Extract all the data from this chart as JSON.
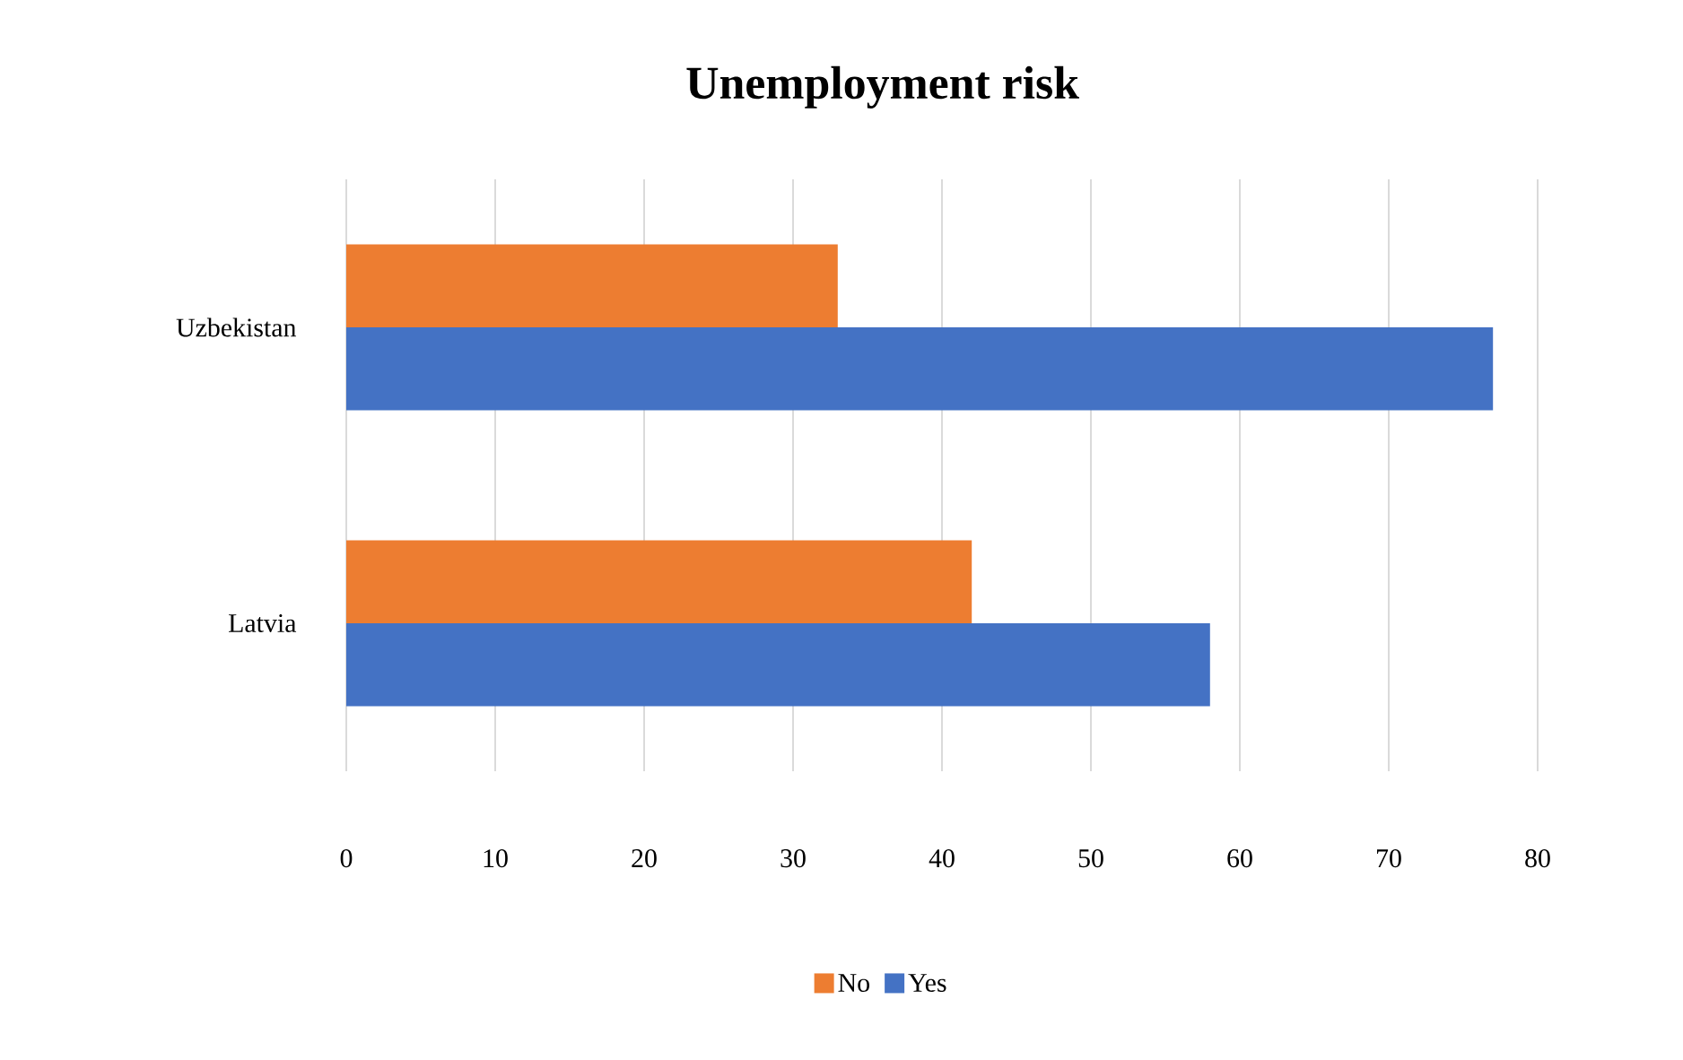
{
  "chart_data": {
    "type": "bar",
    "orientation": "horizontal",
    "title": "Unemployment risk",
    "categories": [
      "Uzbekistan",
      "Latvia"
    ],
    "series": [
      {
        "name": "No",
        "color": "#ed7d31",
        "values": [
          33,
          42
        ]
      },
      {
        "name": "Yes",
        "color": "#4472c4",
        "values": [
          77,
          58
        ]
      }
    ],
    "xlim": [
      0,
      80
    ],
    "xticks": [
      0,
      10,
      20,
      30,
      40,
      50,
      60,
      70,
      80
    ],
    "grid": "x",
    "legend": "bottom"
  }
}
